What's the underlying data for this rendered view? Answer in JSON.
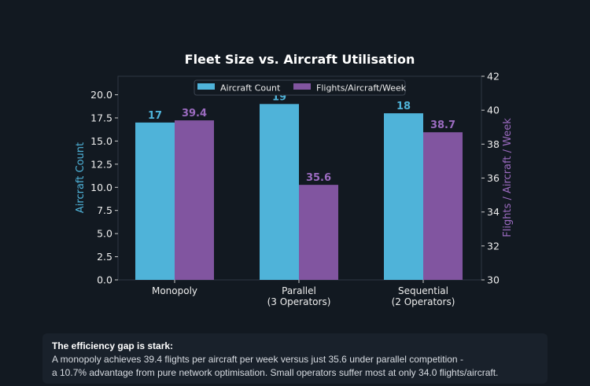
{
  "chart_data": {
    "type": "bar",
    "title": "Fleet Size vs. Aircraft Utilisation",
    "categories": [
      [
        "Monopoly"
      ],
      [
        "Parallel",
        "(3 Operators)"
      ],
      [
        "Sequential",
        "(2 Operators)"
      ]
    ],
    "series": [
      {
        "name": "Aircraft Count",
        "values": [
          17,
          19,
          18
        ],
        "labels": [
          "17",
          "19",
          "18"
        ],
        "axis": "left",
        "color": "#4fb3d9"
      },
      {
        "name": "Flights/Aircraft/Week",
        "values": [
          39.4,
          35.6,
          38.7
        ],
        "labels": [
          "39.4",
          "35.6",
          "38.7"
        ],
        "axis": "right",
        "color": "#8155a0"
      }
    ],
    "ylabel": "Aircraft Count",
    "ylim": [
      0,
      22
    ],
    "yticks": [
      "0.0",
      "2.5",
      "5.0",
      "7.5",
      "10.0",
      "12.5",
      "15.0",
      "17.5",
      "20.0"
    ],
    "y2label": "Flights / Aircraft / Week",
    "y2lim": [
      30,
      42
    ],
    "y2ticks": [
      "30",
      "32",
      "34",
      "36",
      "38",
      "40",
      "42"
    ],
    "legend": "top-center",
    "grid": false
  },
  "note": {
    "heading": "The efficiency gap is stark:",
    "line1": "A monopoly achieves 39.4 flights per aircraft per week versus just 35.6 under parallel competition -",
    "line2": "a 10.7% advantage from pure network optimisation. Small operators suffer most at only 34.0 flights/aircraft."
  }
}
